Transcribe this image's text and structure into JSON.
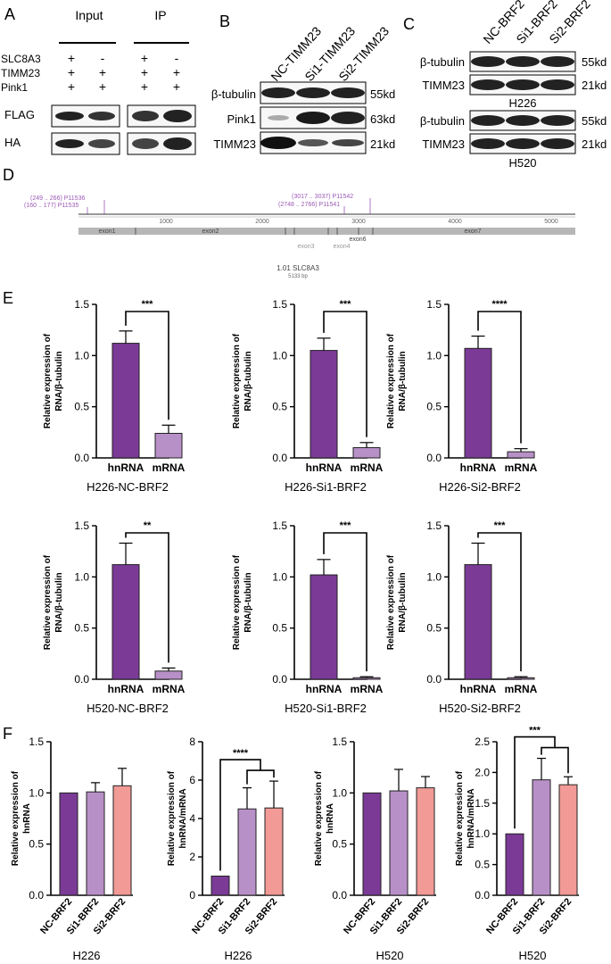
{
  "panel_letters": {
    "a": "A",
    "b": "B",
    "c": "C",
    "d": "D",
    "e": "E",
    "f": "F"
  },
  "colors": {
    "dark_purple": "#7b3a96",
    "light_purple": "#b890c8",
    "pink": "#f19a96",
    "bar_stroke": "#222222",
    "gene_line": "#9b59b6",
    "exon_fill": "#b7b7b7"
  },
  "panel_a": {
    "group_input": "Input",
    "group_ip": "IP",
    "row_labels": [
      "SLC8A3",
      "TIMM23",
      "Pink1"
    ],
    "signs": [
      [
        "+",
        "-",
        "+",
        "-"
      ],
      [
        "+",
        "+",
        "+",
        "+"
      ],
      [
        "+",
        "+",
        "+",
        "+"
      ]
    ],
    "blot_labels": [
      "FLAG",
      "HA"
    ]
  },
  "panel_b": {
    "lanes": [
      "NC-TIMM23",
      "Si1-TIMM23",
      "Si2-TIMM23"
    ],
    "rows": [
      {
        "name": "β-tubulin",
        "size": "55kd"
      },
      {
        "name": "Pink1",
        "size": "63kd"
      },
      {
        "name": "TIMM23",
        "size": "21kd"
      }
    ]
  },
  "panel_c": {
    "lanes": [
      "NC-BRF2",
      "Si1-BRF2",
      "Si2-BRF2"
    ],
    "blocks": [
      {
        "cell": "H226",
        "rows": [
          {
            "name": "β-tubulin",
            "size": "55kd"
          },
          {
            "name": "TIMM23",
            "size": "21kd"
          }
        ]
      },
      {
        "cell": "H520",
        "rows": [
          {
            "name": "β-tubulin",
            "size": "55kd"
          },
          {
            "name": "TIMM23",
            "size": "21kd"
          }
        ]
      }
    ]
  },
  "panel_d": {
    "primer_left_1": "(249 .. 266)  P11536",
    "primer_left_2": "(160 .. 177)  P11535",
    "primer_right_1": "(3017 .. 3037)  P11542",
    "primer_right_2": "(2748 .. 2766)  P11541",
    "ruler": [
      "1000",
      "2000",
      "3000",
      "4000",
      "5000"
    ],
    "exons": [
      "exon1",
      "exon2",
      "exon3",
      "exon4",
      "exon6",
      "exon7"
    ],
    "gene_name": "1.01 SLC8A3",
    "gene_length": "5133 bp"
  },
  "chart_data": [
    {
      "type": "bar",
      "panel": "E",
      "title": "H226-NC-BRF2",
      "ylabel": "Relative expression of RNA/β-tubulin",
      "categories": [
        "hnRNA",
        "mRNA"
      ],
      "values": [
        1.12,
        0.24
      ],
      "errors": [
        0.12,
        0.08
      ],
      "ylim": [
        0,
        1.5
      ],
      "yticks": [
        "0.0",
        "0.5",
        "1.0",
        "1.5"
      ],
      "significance": "***"
    },
    {
      "type": "bar",
      "panel": "E",
      "title": "H226-Si1-BRF2",
      "ylabel": "Relative expression of RNA/β-tubulin",
      "categories": [
        "hnRNA",
        "mRNA"
      ],
      "values": [
        1.05,
        0.1
      ],
      "errors": [
        0.12,
        0.05
      ],
      "ylim": [
        0,
        1.5
      ],
      "yticks": [
        "0.0",
        "0.5",
        "1.0",
        "1.5"
      ],
      "significance": "***"
    },
    {
      "type": "bar",
      "panel": "E",
      "title": "H226-Si2-BRF2",
      "ylabel": "Relative expression of RNA/β-tubulin",
      "categories": [
        "hnRNA",
        "mRNA"
      ],
      "values": [
        1.07,
        0.06
      ],
      "errors": [
        0.12,
        0.03
      ],
      "ylim": [
        0,
        1.5
      ],
      "yticks": [
        "0.0",
        "0.5",
        "1.0",
        "1.5"
      ],
      "significance": "****"
    },
    {
      "type": "bar",
      "panel": "E",
      "title": "H520-NC-BRF2",
      "ylabel": "Relative expression of RNA/β-tubulin",
      "categories": [
        "hnRNA",
        "mRNA"
      ],
      "values": [
        1.12,
        0.08
      ],
      "errors": [
        0.21,
        0.03
      ],
      "ylim": [
        0,
        1.5
      ],
      "yticks": [
        "0.0",
        "0.5",
        "1.0",
        "1.5"
      ],
      "significance": "**"
    },
    {
      "type": "bar",
      "panel": "E",
      "title": "H520-Si1-BRF2",
      "ylabel": "Relative expression of RNA/β-tubulin",
      "categories": [
        "hnRNA",
        "mRNA"
      ],
      "values": [
        1.02,
        0.015
      ],
      "errors": [
        0.15,
        0.01
      ],
      "ylim": [
        0,
        1.5
      ],
      "yticks": [
        "0.0",
        "0.5",
        "1.0",
        "1.5"
      ],
      "significance": "***"
    },
    {
      "type": "bar",
      "panel": "E",
      "title": "H520-Si2-BRF2",
      "ylabel": "Relative expression of RNA/β-tubulin",
      "categories": [
        "hnRNA",
        "mRNA"
      ],
      "values": [
        1.12,
        0.015
      ],
      "errors": [
        0.21,
        0.01
      ],
      "ylim": [
        0,
        1.5
      ],
      "yticks": [
        "0.0",
        "0.5",
        "1.0",
        "1.5"
      ],
      "significance": "***"
    },
    {
      "type": "bar",
      "panel": "F",
      "title": "H226",
      "ylabel": "Relative expression of hnRNA",
      "categories": [
        "NC-BRF2",
        "Si1-BRF2",
        "Si2-BRF2"
      ],
      "values": [
        1.0,
        1.01,
        1.07
      ],
      "errors": [
        0,
        0.09,
        0.17
      ],
      "ylim": [
        0,
        1.5
      ],
      "yticks": [
        "0.0",
        "0.5",
        "1.0",
        "1.5"
      ],
      "significance": ""
    },
    {
      "type": "bar",
      "panel": "F",
      "title": "H226",
      "ylabel": "Relative expression of hnRNA/mRNA",
      "categories": [
        "NC-BRF2",
        "Si1-BRF2",
        "Si2-BRF2"
      ],
      "values": [
        1.0,
        4.5,
        4.55
      ],
      "errors": [
        0,
        1.1,
        1.4
      ],
      "ylim": [
        0,
        8
      ],
      "yticks": [
        "0",
        "2",
        "4",
        "6",
        "8"
      ],
      "significance": "****"
    },
    {
      "type": "bar",
      "panel": "F",
      "title": "H520",
      "ylabel": "Relative expression of hnRNA",
      "categories": [
        "NC-BRF2",
        "Si1-BRF2",
        "Si2-BRF2"
      ],
      "values": [
        1.0,
        1.02,
        1.05
      ],
      "errors": [
        0,
        0.21,
        0.11
      ],
      "ylim": [
        0,
        1.5
      ],
      "yticks": [
        "0.0",
        "0.5",
        "1.0",
        "1.5"
      ],
      "significance": ""
    },
    {
      "type": "bar",
      "panel": "F",
      "title": "H520",
      "ylabel": "Relative expression of hnRNA/mRNA",
      "categories": [
        "NC-BRF2",
        "Si1-BRF2",
        "Si2-BRF2"
      ],
      "values": [
        1.0,
        1.88,
        1.8
      ],
      "errors": [
        0,
        0.35,
        0.13
      ],
      "ylim": [
        0,
        2.5
      ],
      "yticks": [
        "0.0",
        "0.5",
        "1.0",
        "1.5",
        "2.0",
        "2.5"
      ],
      "significance": "***"
    }
  ]
}
